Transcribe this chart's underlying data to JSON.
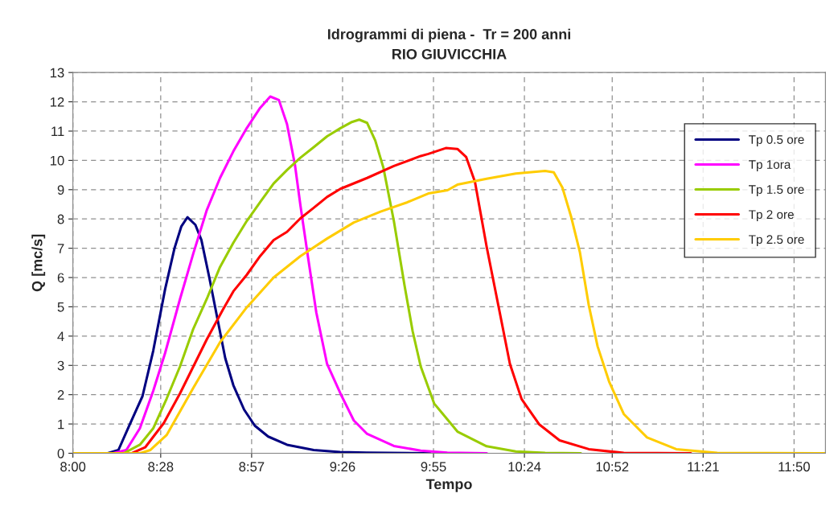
{
  "chart_data": {
    "type": "line",
    "title": "Idrogrammi di piena -  Tr = 200 anni\nRIO GIUVICCHIA",
    "xlabel": "Tempo",
    "ylabel": "Q [mc/s]",
    "xlim": [
      8,
      12
    ],
    "ylim": [
      0,
      13
    ],
    "xticks": [
      {
        "value": 8.0,
        "label": "8:00"
      },
      {
        "value": 8.4667,
        "label": "8:28"
      },
      {
        "value": 8.95,
        "label": "8:57"
      },
      {
        "value": 9.4333,
        "label": "9:26"
      },
      {
        "value": 9.9167,
        "label": "9:55"
      },
      {
        "value": 10.4,
        "label": "10:24"
      },
      {
        "value": 10.8667,
        "label": "10:52"
      },
      {
        "value": 11.35,
        "label": "11:21"
      },
      {
        "value": 11.8333,
        "label": "11:50"
      }
    ],
    "yticks": [
      0,
      1,
      2,
      3,
      4,
      5,
      6,
      7,
      8,
      9,
      10,
      11,
      12,
      13
    ],
    "grid": true,
    "legend": "right",
    "marker": "none",
    "line_style": "solid",
    "series": [
      {
        "name": "Tp 0.5 ore",
        "color": "#000080",
        "x": [
          8.0,
          8.185,
          8.242,
          8.299,
          8.37,
          8.427,
          8.49,
          8.54,
          8.576,
          8.609,
          8.651,
          8.683,
          8.725,
          8.768,
          8.81,
          8.853,
          8.91,
          8.967,
          9.038,
          9.138,
          9.28,
          9.42,
          9.56,
          9.9
        ],
        "values": [
          0,
          0,
          0.11,
          0.94,
          1.95,
          3.5,
          5.6,
          7.0,
          7.74,
          8.06,
          7.8,
          7.28,
          6.0,
          4.6,
          3.24,
          2.32,
          1.49,
          0.94,
          0.57,
          0.29,
          0.11,
          0.04,
          0.02,
          0
        ]
      },
      {
        "name": "Tp 1ora",
        "color": "#ff00ff",
        "x": [
          8.0,
          8.213,
          8.284,
          8.356,
          8.427,
          8.49,
          8.569,
          8.64,
          8.711,
          8.782,
          8.853,
          8.924,
          8.995,
          9.049,
          9.095,
          9.138,
          9.18,
          9.209,
          9.251,
          9.294,
          9.351,
          9.422,
          9.493,
          9.564,
          9.706,
          9.849,
          9.99,
          10.2
        ],
        "values": [
          0,
          0,
          0.11,
          0.85,
          2.13,
          3.42,
          5.26,
          6.82,
          8.29,
          9.4,
          10.31,
          11.1,
          11.79,
          12.18,
          12.06,
          11.24,
          9.86,
          8.48,
          6.64,
          4.8,
          3.05,
          2.04,
          1.12,
          0.66,
          0.25,
          0.09,
          0.02,
          0
        ]
      },
      {
        "name": "Tp 1.5 ore",
        "color": "#99cc00",
        "x": [
          8.0,
          8.27,
          8.356,
          8.427,
          8.498,
          8.569,
          8.64,
          8.711,
          8.782,
          8.853,
          8.924,
          8.995,
          9.067,
          9.138,
          9.209,
          9.28,
          9.351,
          9.422,
          9.479,
          9.522,
          9.564,
          9.607,
          9.65,
          9.706,
          9.763,
          9.806,
          9.849,
          9.92,
          10.044,
          10.199,
          10.354,
          10.51,
          10.7
        ],
        "values": [
          0,
          0,
          0.29,
          0.85,
          1.86,
          2.96,
          4.25,
          5.26,
          6.36,
          7.19,
          7.93,
          8.57,
          9.21,
          9.67,
          10.09,
          10.45,
          10.82,
          11.1,
          11.3,
          11.39,
          11.28,
          10.68,
          9.76,
          7.93,
          5.72,
          4.16,
          2.96,
          1.7,
          0.74,
          0.24,
          0.06,
          0.01,
          0
        ]
      },
      {
        "name": "Tp 2 ore",
        "color": "#ff0000",
        "x": [
          8.0,
          8.313,
          8.384,
          8.483,
          8.569,
          8.64,
          8.711,
          8.796,
          8.853,
          8.924,
          8.995,
          9.067,
          9.138,
          9.209,
          9.28,
          9.351,
          9.422,
          9.564,
          9.706,
          9.849,
          9.889,
          9.982,
          10.044,
          10.09,
          10.137,
          10.199,
          10.261,
          10.323,
          10.385,
          10.478,
          10.587,
          10.742,
          10.928,
          11.285
        ],
        "values": [
          0,
          0,
          0.2,
          1.03,
          2.04,
          2.96,
          3.88,
          4.89,
          5.53,
          6.09,
          6.73,
          7.28,
          7.56,
          8.02,
          8.38,
          8.75,
          9.03,
          9.4,
          9.81,
          10.15,
          10.22,
          10.42,
          10.39,
          10.12,
          9.27,
          7.06,
          5.06,
          3.05,
          1.85,
          0.99,
          0.44,
          0.14,
          0.01,
          0
        ]
      },
      {
        "name": "Tp 2.5 ore",
        "color": "#ffcc00",
        "x": [
          8.0,
          8.356,
          8.412,
          8.498,
          8.64,
          8.782,
          8.924,
          9.067,
          9.209,
          9.351,
          9.493,
          9.635,
          9.778,
          9.889,
          9.991,
          10.044,
          10.199,
          10.354,
          10.51,
          10.556,
          10.602,
          10.649,
          10.695,
          10.742,
          10.789,
          10.85,
          10.928,
          11.052,
          11.207,
          11.425,
          12.0
        ],
        "values": [
          0,
          0,
          0.11,
          0.62,
          2.23,
          3.79,
          4.98,
          6.0,
          6.73,
          7.33,
          7.88,
          8.25,
          8.57,
          8.87,
          8.98,
          9.17,
          9.37,
          9.55,
          9.64,
          9.59,
          9.07,
          8.06,
          6.86,
          5.06,
          3.65,
          2.45,
          1.34,
          0.54,
          0.14,
          0.01,
          0
        ]
      }
    ]
  }
}
